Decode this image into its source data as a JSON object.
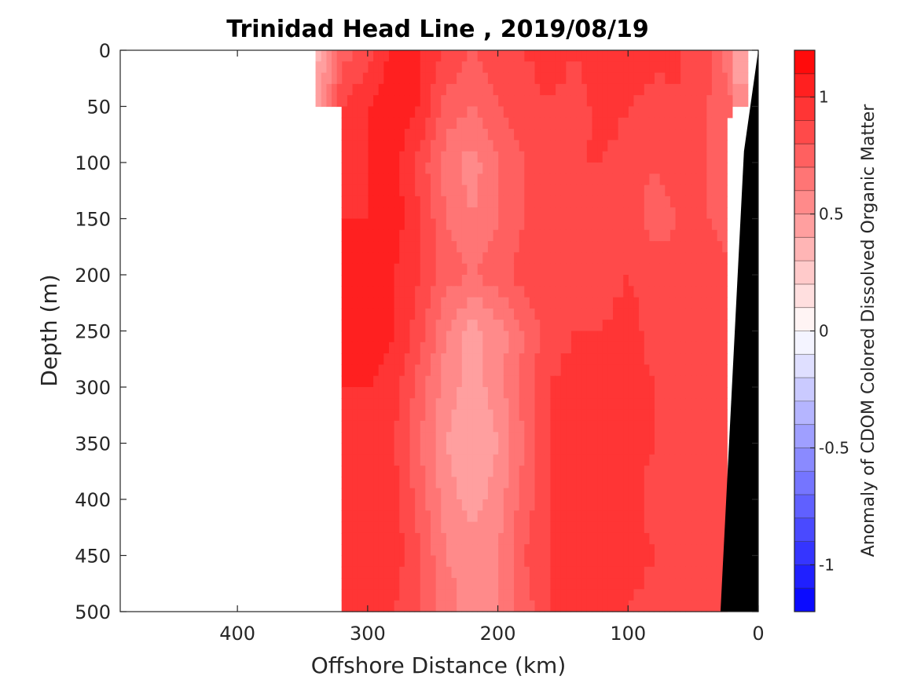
{
  "chart_data": {
    "type": "heatmap",
    "title": "Trinidad Head Line , 2019/08/19",
    "xlabel": "Offshore Distance (km)",
    "ylabel": "Depth (m)",
    "colorbar_label": "Anomaly of CDOM Colored Dissolved Organic Matter",
    "xlim": [
      490,
      0
    ],
    "ylim": [
      0,
      500
    ],
    "x_reversed": true,
    "y_reversed": true,
    "x_ticks": [
      "400",
      "300",
      "200",
      "100",
      "0"
    ],
    "y_ticks": [
      "0",
      "50",
      "100",
      "150",
      "200",
      "250",
      "300",
      "350",
      "400",
      "450",
      "500"
    ],
    "colorbar_range": [
      -1.2,
      1.2
    ],
    "colorbar_ticks": [
      "1",
      "0.5",
      "0",
      "-0.5",
      "-1"
    ],
    "colorbar_levels": 24,
    "colormap": "blue-white-red",
    "colors": {
      "max_red": "#ff0000",
      "min_blue": "#0000ff",
      "neutral": "#ffffff",
      "bathymetry": "#000000"
    },
    "data_extent_km": [
      0,
      320
    ],
    "surface_extent_km_0_to_50m": [
      10,
      340
    ],
    "distance_km": [
      320,
      300,
      280,
      260,
      240,
      220,
      200,
      180,
      160,
      140,
      120,
      100,
      80,
      60,
      40,
      20
    ],
    "depth_m": [
      0,
      50,
      100,
      150,
      200,
      250,
      300,
      350,
      400,
      450,
      500
    ],
    "anomaly": [
      [
        0.75,
        0.85,
        1.05,
        1.0,
        0.9,
        0.8,
        0.85,
        0.9,
        0.95,
        0.9,
        1.0,
        1.0,
        0.95,
        0.9,
        0.85,
        0.6
      ],
      [
        0.9,
        1.0,
        1.05,
        1.0,
        0.75,
        0.7,
        0.8,
        0.85,
        0.9,
        0.85,
        0.95,
        0.9,
        0.85,
        0.9,
        0.8,
        0.7
      ],
      [
        0.95,
        1.0,
        1.05,
        0.85,
        0.65,
        0.55,
        0.7,
        0.8,
        0.85,
        0.9,
        0.9,
        0.85,
        0.8,
        0.85,
        0.8,
        0.7
      ],
      [
        1.0,
        1.0,
        1.05,
        0.9,
        0.7,
        0.6,
        0.7,
        0.8,
        0.85,
        0.9,
        0.85,
        0.85,
        0.75,
        0.8,
        0.8,
        0.75
      ],
      [
        1.05,
        1.05,
        1.0,
        0.9,
        0.75,
        0.7,
        0.75,
        0.85,
        0.9,
        0.9,
        0.85,
        0.9,
        0.85,
        0.85,
        0.85,
        0.8
      ],
      [
        1.05,
        1.05,
        1.0,
        0.85,
        0.6,
        0.45,
        0.55,
        0.7,
        0.85,
        0.9,
        0.9,
        0.95,
        0.85,
        0.9,
        0.85,
        0.85
      ],
      [
        1.0,
        1.0,
        0.95,
        0.75,
        0.55,
        0.45,
        0.55,
        0.75,
        0.9,
        0.95,
        0.95,
        0.95,
        0.9,
        0.85,
        0.85,
        0.85
      ],
      [
        1.0,
        0.95,
        0.9,
        0.7,
        0.5,
        0.4,
        0.5,
        0.7,
        0.9,
        0.95,
        1.0,
        0.95,
        0.9,
        0.85,
        0.8,
        0.85
      ],
      [
        1.0,
        1.0,
        0.95,
        0.75,
        0.55,
        0.45,
        0.55,
        0.75,
        0.9,
        1.0,
        0.95,
        0.95,
        0.85,
        0.85,
        0.8,
        0.8
      ],
      [
        0.95,
        1.0,
        0.95,
        0.8,
        0.6,
        0.55,
        0.6,
        0.8,
        0.9,
        0.95,
        1.0,
        0.95,
        0.9,
        0.85,
        0.8,
        0.85
      ],
      [
        0.95,
        0.95,
        0.9,
        0.8,
        0.65,
        0.55,
        0.6,
        0.75,
        0.9,
        0.95,
        0.95,
        0.9,
        0.85,
        0.8,
        0.8,
        0.85
      ]
    ]
  }
}
